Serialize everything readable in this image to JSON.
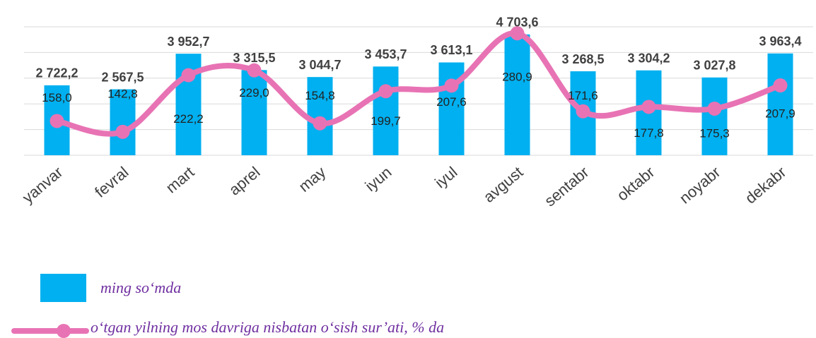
{
  "chart_data": {
    "type": "bar_line",
    "categories": [
      "yanvar",
      "fevral",
      "mart",
      "aprel",
      "may",
      "iyun",
      "iyul",
      "avgust",
      "sentabr",
      "oktabr",
      "noyabr",
      "dekabr"
    ],
    "ylim": [
      0,
      5000
    ],
    "yticks": [
      0,
      1000,
      2000,
      3000,
      4000,
      5000
    ],
    "grid": true,
    "ytick_labels": false,
    "y2lim": [
      110,
      290
    ],
    "series": [
      {
        "name": "ming so‘mda",
        "type": "bar",
        "color": "#00b0f0",
        "values": [
          2722.2,
          2567.5,
          3952.7,
          3315.5,
          3044.7,
          3453.7,
          3613.1,
          4703.6,
          3268.5,
          3304.2,
          3027.8,
          3963.4
        ],
        "value_labels": [
          "2 722,2",
          "2 567,5",
          "3 952,7",
          "3 315,5",
          "3 044,7",
          "3 453,7",
          "3 613,1",
          "4 703,6",
          "3 268,5",
          "3 304,2",
          "3 027,8",
          "3 963,4"
        ]
      },
      {
        "name": "o‘tgan yilning mos davriga nisbatan o‘sish sur’ati, % da",
        "type": "line",
        "axis": "y2",
        "color": "#e873b4",
        "smooth": true,
        "values": [
          158.0,
          142.8,
          222.2,
          229.0,
          154.8,
          199.7,
          207.6,
          280.9,
          171.6,
          177.8,
          175.3,
          207.9
        ],
        "value_labels": [
          "158,0",
          "142,8",
          "222,2",
          "229,0",
          "154,8",
          "199,7",
          "207,6",
          "280,9",
          "171,6",
          "177,8",
          "175,3",
          "207,9"
        ]
      }
    ]
  }
}
